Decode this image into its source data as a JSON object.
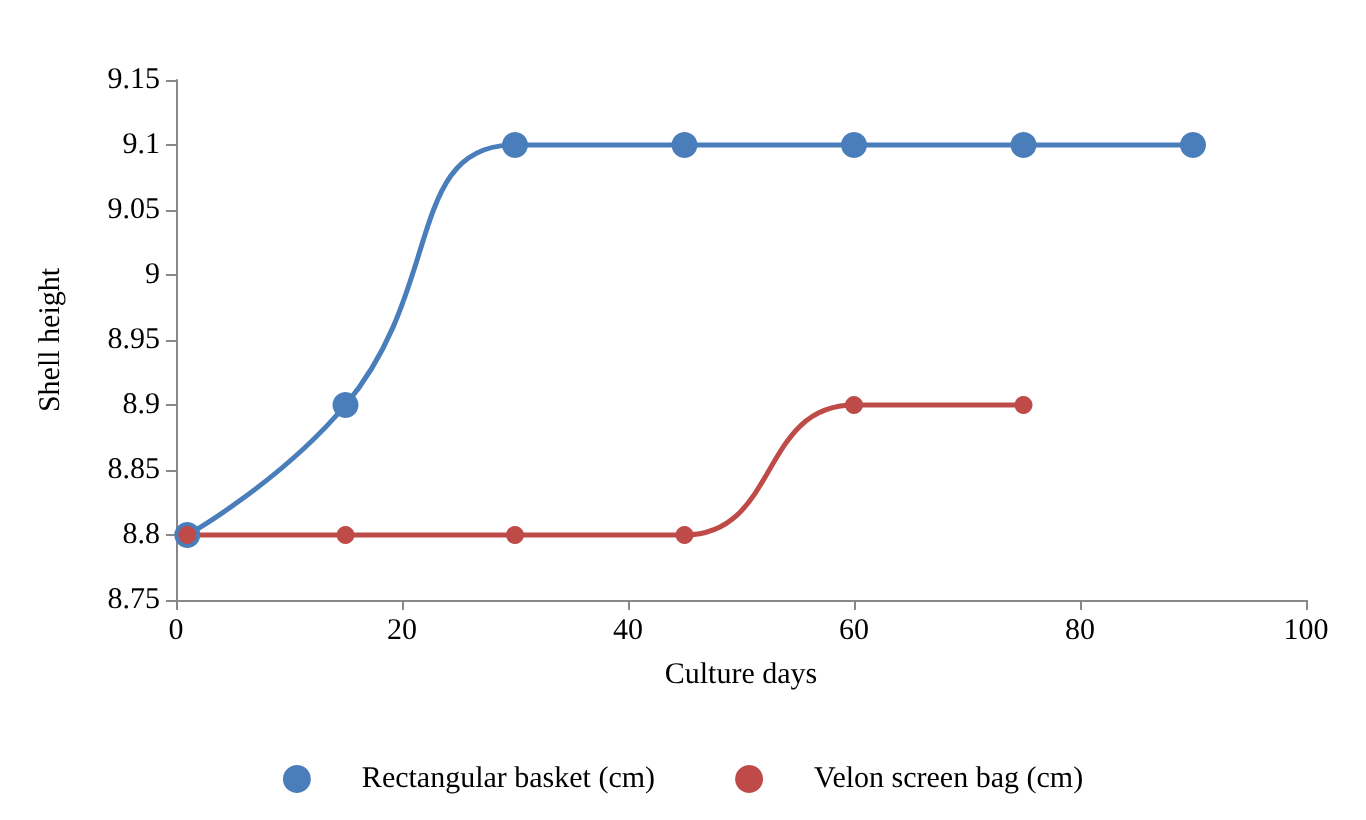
{
  "chart_data": {
    "type": "line",
    "xlabel": "Culture days",
    "ylabel": "Shell height",
    "series": [
      {
        "name": "Rectangular basket (cm)",
        "color": "#4a7ebb",
        "x": [
          1,
          15,
          30,
          45,
          60,
          75,
          90
        ],
        "values": [
          8.8,
          8.9,
          9.1,
          9.1,
          9.1,
          9.1,
          9.1
        ]
      },
      {
        "name": "Velon screen bag (cm)",
        "color": "#be4b48",
        "x": [
          1,
          15,
          30,
          45,
          60,
          75
        ],
        "values": [
          8.8,
          8.8,
          8.8,
          8.8,
          8.9,
          8.9
        ]
      }
    ],
    "xlim": [
      0,
      100
    ],
    "xticks": [
      0,
      20,
      40,
      60,
      80,
      100
    ],
    "ylim": [
      8.75,
      9.15
    ],
    "yticks": [
      8.75,
      8.8,
      8.85,
      8.9,
      8.95,
      9,
      9.05,
      9.1,
      9.15
    ],
    "grid": false,
    "legend": "bottom",
    "marker": "circle",
    "line_style": "solid"
  }
}
